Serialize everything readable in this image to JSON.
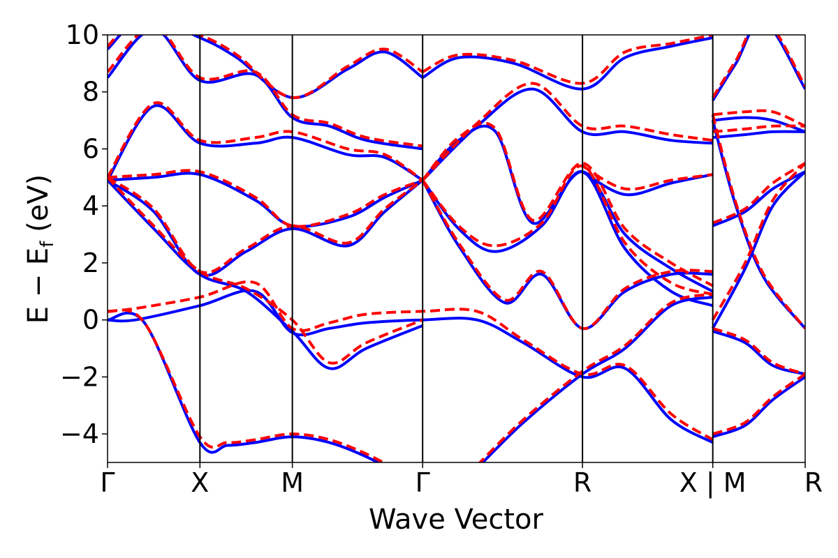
{
  "chart_data": {
    "type": "line",
    "title": "",
    "xlabel": "Wave Vector",
    "ylabel_parts": {
      "main": "E − E",
      "sub": "f",
      "unit": " (eV)"
    },
    "ylim": [
      -5,
      10
    ],
    "yticks": [
      -4,
      -2,
      0,
      2,
      4,
      6,
      8,
      10
    ],
    "ytick_labels": [
      "−4",
      "−2",
      "0",
      "2",
      "4",
      "6",
      "8",
      "10"
    ],
    "k_path": [
      {
        "label": "Γ",
        "k": 0.0
      },
      {
        "label": "X",
        "k": 1.0
      },
      {
        "label": "M",
        "k": 2.0
      },
      {
        "label": "Γ",
        "k": 3.41
      },
      {
        "label": "R",
        "k": 5.14
      },
      {
        "label": "X | M",
        "k": 6.55
      },
      {
        "label": "R",
        "k": 7.55
      }
    ],
    "xlim": [
      0,
      7.55
    ],
    "grid": false,
    "series": [
      {
        "style": "solid",
        "color": "#0000ff",
        "bands": [
          {
            "x": [
              0,
              0.4,
              1.0,
              1.3,
              1.6,
              2.0,
              2.4,
              2.8,
              3.2,
              3.41
            ],
            "y": [
              0.0,
              -0.1,
              -4.3,
              -4.4,
              -4.3,
              -4.1,
              -4.3,
              -4.8,
              -5.5,
              -6.0
            ]
          },
          {
            "x": [
              0,
              0.3,
              1.0,
              1.6,
              2.0,
              2.4,
              2.8,
              3.41,
              4.0,
              4.5,
              5.14,
              5.6,
              6.1,
              6.55
            ],
            "y": [
              0.0,
              0.0,
              0.5,
              1.0,
              -0.45,
              -0.3,
              -0.1,
              0.0,
              0.0,
              -0.8,
              -2.0,
              -1.7,
              -3.5,
              -4.3
            ]
          },
          {
            "x": [
              0,
              0.5,
              1.0,
              1.5,
              2.0,
              2.4,
              2.8,
              3.41
            ],
            "y": [
              4.9,
              3.2,
              1.6,
              1.0,
              -0.4,
              -1.7,
              -1.0,
              -0.2
            ]
          },
          {
            "x": [
              0,
              0.5,
              1.0,
              1.5,
              2.0,
              2.6,
              3.0,
              3.41
            ],
            "y": [
              4.9,
              3.8,
              1.6,
              2.4,
              3.2,
              2.6,
              3.8,
              4.9
            ]
          },
          {
            "x": [
              0,
              0.5,
              1.0,
              1.6,
              2.0,
              2.6,
              3.0,
              3.41
            ],
            "y": [
              4.9,
              5.0,
              5.1,
              4.2,
              3.3,
              3.6,
              4.3,
              4.9
            ]
          },
          {
            "x": [
              0,
              0.5,
              1.0,
              1.6,
              2.0,
              2.6,
              3.0,
              3.41
            ],
            "y": [
              4.9,
              7.5,
              6.2,
              6.2,
              6.4,
              5.8,
              5.7,
              4.9
            ]
          },
          {
            "x": [
              0,
              0.5,
              1.0,
              1.6,
              2.0,
              2.4,
              2.8,
              3.41
            ],
            "y": [
              8.5,
              10.2,
              8.4,
              8.6,
              7.1,
              6.8,
              6.3,
              6.0
            ]
          },
          {
            "x": [
              0,
              0.4,
              1.0,
              1.4,
              2.0,
              2.6,
              3.0,
              3.41
            ],
            "y": [
              9.5,
              10.6,
              9.9,
              9.2,
              7.8,
              8.8,
              9.4,
              8.5
            ]
          },
          {
            "x": [
              3.41,
              3.8,
              4.3,
              4.7,
              5.14,
              5.6,
              6.1,
              6.55
            ],
            "y": [
              4.9,
              2.6,
              0.6,
              1.6,
              -0.3,
              1.0,
              1.6,
              1.6
            ]
          },
          {
            "x": [
              3.41,
              3.8,
              4.2,
              4.7,
              5.14,
              5.6,
              6.1,
              6.55
            ],
            "y": [
              4.9,
              3.2,
              2.4,
              3.3,
              5.2,
              2.5,
              1.0,
              0.5
            ]
          },
          {
            "x": [
              3.41,
              3.8,
              4.2,
              4.6,
              5.14,
              5.6,
              6.1,
              6.55
            ],
            "y": [
              4.9,
              6.3,
              6.6,
              3.4,
              5.2,
              3.0,
              1.8,
              1.0
            ]
          },
          {
            "x": [
              3.41,
              4.0,
              4.6,
              5.14,
              5.6,
              6.1,
              6.55
            ],
            "y": [
              4.9,
              6.8,
              8.1,
              6.6,
              6.6,
              6.3,
              6.2
            ]
          },
          {
            "x": [
              3.41,
              3.8,
              4.4,
              5.14,
              5.6,
              6.1,
              6.55
            ],
            "y": [
              8.5,
              9.2,
              9.0,
              8.1,
              9.2,
              9.6,
              9.9
            ]
          },
          {
            "x": [
              5.14,
              5.6,
              6.1,
              6.55
            ],
            "y": [
              5.2,
              4.4,
              4.8,
              5.1
            ]
          },
          {
            "x": [
              4.0,
              4.5,
              5.14,
              5.6,
              6.1,
              6.55
            ],
            "y": [
              -5.2,
              -3.6,
              -1.9,
              -1.0,
              0.5,
              0.8
            ]
          },
          {
            "x": [
              6.55,
              6.8,
              7.1,
              7.55
            ],
            "y": [
              7.0,
              4.0,
              1.5,
              -0.3
            ]
          },
          {
            "x": [
              6.55,
              6.9,
              7.2,
              7.55
            ],
            "y": [
              -0.3,
              1.8,
              4.0,
              5.2
            ]
          },
          {
            "x": [
              6.55,
              6.9,
              7.2,
              7.55
            ],
            "y": [
              3.3,
              3.8,
              4.6,
              5.2
            ]
          },
          {
            "x": [
              6.55,
              6.9,
              7.2,
              7.55
            ],
            "y": [
              -0.4,
              -0.8,
              -1.6,
              -1.9
            ]
          },
          {
            "x": [
              6.55,
              6.9,
              7.2,
              7.55
            ],
            "y": [
              -4.1,
              -3.7,
              -2.8,
              -2.0
            ]
          },
          {
            "x": [
              6.55,
              6.9,
              7.2,
              7.55
            ],
            "y": [
              6.4,
              6.5,
              6.6,
              6.6
            ]
          },
          {
            "x": [
              6.55,
              6.9,
              7.2,
              7.55
            ],
            "y": [
              7.0,
              7.1,
              7.0,
              6.6
            ]
          },
          {
            "x": [
              6.55,
              6.8,
              7.1,
              7.55
            ],
            "y": [
              7.7,
              9.0,
              10.5,
              8.1
            ]
          }
        ]
      },
      {
        "style": "dashed",
        "color": "#ff0000",
        "bands": [
          {
            "x": [
              0,
              0.4,
              1.0,
              1.3,
              1.6,
              2.0,
              2.4,
              2.8,
              3.2,
              3.41
            ],
            "y": [
              0.3,
              -0.1,
              -4.1,
              -4.3,
              -4.2,
              -4.0,
              -4.2,
              -4.7,
              -5.4,
              -5.9
            ]
          },
          {
            "x": [
              0,
              0.3,
              1.0,
              1.6,
              2.0,
              2.4,
              2.8,
              3.41,
              4.0,
              4.5,
              5.14,
              5.6,
              6.1,
              6.55
            ],
            "y": [
              0.3,
              0.4,
              0.8,
              1.3,
              -0.3,
              -0.1,
              0.2,
              0.3,
              0.3,
              -0.7,
              -1.9,
              -1.6,
              -3.3,
              -4.2
            ]
          },
          {
            "x": [
              0,
              0.5,
              1.0,
              1.5,
              2.0,
              2.4,
              2.8,
              3.41
            ],
            "y": [
              5.0,
              3.3,
              1.7,
              1.1,
              0.0,
              -1.5,
              -0.8,
              0.0
            ]
          },
          {
            "x": [
              0,
              0.5,
              1.0,
              1.5,
              2.0,
              2.6,
              3.0,
              3.41
            ],
            "y": [
              5.0,
              3.9,
              1.7,
              2.5,
              3.3,
              2.7,
              3.9,
              4.9
            ]
          },
          {
            "x": [
              0,
              0.5,
              1.0,
              1.6,
              2.0,
              2.6,
              3.0,
              3.41
            ],
            "y": [
              5.0,
              5.1,
              5.2,
              4.3,
              3.3,
              3.7,
              4.4,
              4.9
            ]
          },
          {
            "x": [
              0,
              0.5,
              1.0,
              1.6,
              2.0,
              2.6,
              3.0,
              3.41
            ],
            "y": [
              5.0,
              7.6,
              6.3,
              6.4,
              6.6,
              6.0,
              5.8,
              4.9
            ]
          },
          {
            "x": [
              0,
              0.5,
              1.0,
              1.6,
              2.0,
              2.4,
              2.8,
              3.41
            ],
            "y": [
              8.7,
              10.3,
              8.5,
              8.7,
              7.2,
              6.9,
              6.4,
              6.1
            ]
          },
          {
            "x": [
              0,
              0.4,
              1.0,
              1.4,
              2.0,
              2.6,
              3.0,
              3.41
            ],
            "y": [
              9.6,
              10.7,
              10.0,
              9.3,
              7.8,
              8.9,
              9.5,
              8.7
            ]
          },
          {
            "x": [
              3.41,
              3.8,
              4.3,
              4.7,
              5.14,
              5.6,
              6.1,
              6.55
            ],
            "y": [
              4.9,
              2.7,
              0.7,
              1.7,
              -0.3,
              1.1,
              1.7,
              1.7
            ]
          },
          {
            "x": [
              3.41,
              3.8,
              4.2,
              4.7,
              5.14,
              5.6,
              6.1,
              6.55
            ],
            "y": [
              4.9,
              3.3,
              2.6,
              3.4,
              5.4,
              2.7,
              1.3,
              0.9
            ]
          },
          {
            "x": [
              3.41,
              3.8,
              4.2,
              4.6,
              5.14,
              5.6,
              6.1,
              6.55
            ],
            "y": [
              4.9,
              6.4,
              6.7,
              3.5,
              5.5,
              3.2,
              2.0,
              1.2
            ]
          },
          {
            "x": [
              3.41,
              4.0,
              4.6,
              5.14,
              5.6,
              6.1,
              6.55
            ],
            "y": [
              4.9,
              6.9,
              8.3,
              6.8,
              6.8,
              6.5,
              6.3
            ]
          },
          {
            "x": [
              3.41,
              3.8,
              4.4,
              5.14,
              5.6,
              6.1,
              6.55
            ],
            "y": [
              8.7,
              9.3,
              9.1,
              8.3,
              9.4,
              9.7,
              10.0
            ]
          },
          {
            "x": [
              5.14,
              5.6,
              6.1,
              6.55
            ],
            "y": [
              5.4,
              4.6,
              4.9,
              5.1
            ]
          },
          {
            "x": [
              4.0,
              4.5,
              5.14,
              5.6,
              6.1,
              6.55
            ],
            "y": [
              -5.1,
              -3.5,
              -1.8,
              -0.9,
              0.6,
              0.9
            ]
          },
          {
            "x": [
              6.55,
              6.8,
              7.1,
              7.55
            ],
            "y": [
              7.2,
              4.1,
              1.6,
              -0.3
            ]
          },
          {
            "x": [
              6.55,
              6.9,
              7.2,
              7.55
            ],
            "y": [
              0.0,
              2.0,
              4.2,
              5.5
            ]
          },
          {
            "x": [
              6.55,
              6.9,
              7.2,
              7.55
            ],
            "y": [
              3.4,
              3.9,
              4.8,
              5.5
            ]
          },
          {
            "x": [
              6.55,
              6.9,
              7.2,
              7.55
            ],
            "y": [
              -0.3,
              -0.7,
              -1.5,
              -1.9
            ]
          },
          {
            "x": [
              6.55,
              6.9,
              7.2,
              7.55
            ],
            "y": [
              -4.0,
              -3.6,
              -2.7,
              -1.9
            ]
          },
          {
            "x": [
              6.55,
              6.9,
              7.2,
              7.55
            ],
            "y": [
              6.6,
              6.7,
              6.8,
              6.8
            ]
          },
          {
            "x": [
              6.55,
              6.9,
              7.2,
              7.55
            ],
            "y": [
              7.2,
              7.3,
              7.3,
              6.8
            ]
          },
          {
            "x": [
              6.55,
              6.8,
              7.1,
              7.55
            ],
            "y": [
              7.8,
              9.1,
              10.6,
              8.2
            ]
          }
        ]
      }
    ]
  }
}
